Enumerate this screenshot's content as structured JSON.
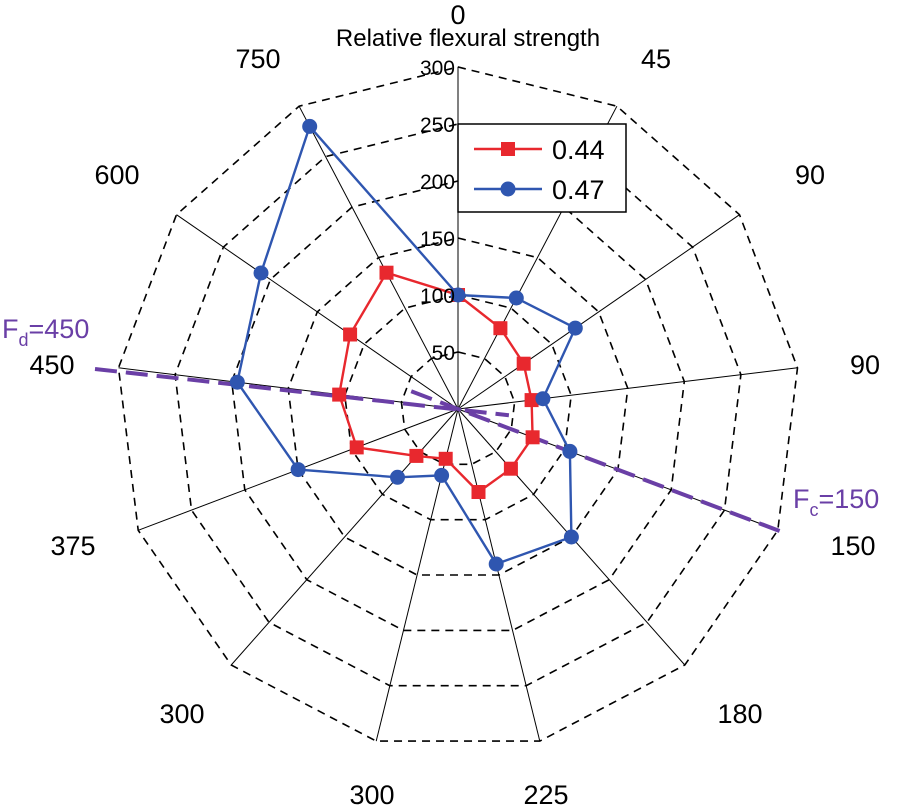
{
  "chart_data": {
    "type": "radar",
    "title": "Relative flexural strength",
    "categories": [
      "0",
      "45",
      "90",
      "90",
      "150",
      "180",
      "225",
      "300",
      "300",
      "375",
      "450",
      "600",
      "750"
    ],
    "r_ticks": [
      "50",
      "100",
      "150",
      "200",
      "250",
      "300"
    ],
    "rlim": [
      0,
      300
    ],
    "grid": true,
    "legend_position": "top-right",
    "series": [
      {
        "name": "0.44",
        "color": "#e8282e",
        "marker": "square",
        "values": [
          100,
          80,
          70,
          65,
          70,
          70,
          75,
          45,
          55,
          95,
          105,
          115,
          135
        ]
      },
      {
        "name": "0.47",
        "color": "#2f56b0",
        "marker": "circle",
        "values": [
          100,
          110,
          125,
          75,
          105,
          150,
          140,
          60,
          80,
          150,
          195,
          210,
          280
        ]
      }
    ],
    "reference_lines": [
      {
        "label_main": "F",
        "label_sub": "d",
        "label_rest": "=450",
        "color": "#6a3fa6",
        "category_index": 10
      },
      {
        "label_main": "F",
        "label_sub": "c",
        "label_rest": "=150",
        "color": "#6a3fa6",
        "category_index": 4
      }
    ]
  }
}
